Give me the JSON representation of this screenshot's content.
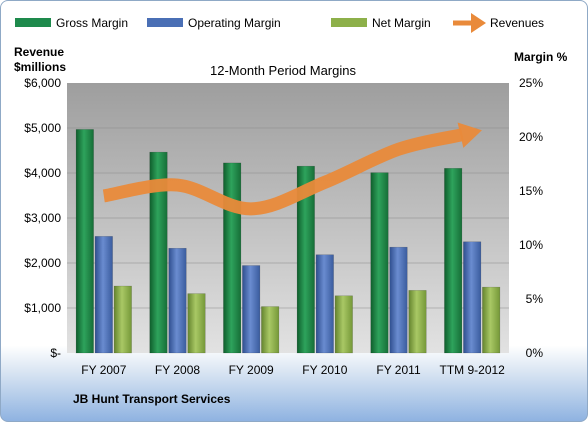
{
  "chart_data": {
    "type": "bar",
    "title": "12-Month Period Margins",
    "left_axis_title_line1": "Revenue",
    "left_axis_title_line2": "$millions",
    "right_axis_title": "Margin %",
    "company": "JB Hunt Transport Services",
    "categories": [
      "FY 2007",
      "FY 2008",
      "FY 2009",
      "FY 2010",
      "FY 2011",
      "TTM 9-2012"
    ],
    "left_ticks": [
      "$6,000",
      "$5,000",
      "$4,000",
      "$3,000",
      "$2,000",
      "$1,000",
      "$-"
    ],
    "right_ticks": [
      "25%",
      "20%",
      "15%",
      "10%",
      "5%",
      "0%"
    ],
    "ylim_left": [
      0,
      6000
    ],
    "ylim_right": [
      0,
      25
    ],
    "legend_position": "top",
    "series": [
      {
        "name": "Gross Margin",
        "axis": "right",
        "color": "#1e8a4c",
        "values": [
          20.7,
          18.6,
          17.6,
          17.3,
          16.7,
          17.1
        ]
      },
      {
        "name": "Operating Margin",
        "axis": "right",
        "color": "#4a6fb5",
        "values": [
          10.8,
          9.7,
          8.1,
          9.1,
          9.8,
          10.3
        ]
      },
      {
        "name": "Net Margin",
        "axis": "right",
        "color": "#8db04a",
        "values": [
          6.2,
          5.5,
          4.3,
          5.3,
          5.8,
          6.1
        ]
      },
      {
        "name": "Revenues",
        "axis": "left",
        "color": "#e98a3a",
        "type": "line",
        "values": [
          3490,
          3732,
          3203,
          3793,
          4527,
          4900
        ]
      }
    ]
  }
}
